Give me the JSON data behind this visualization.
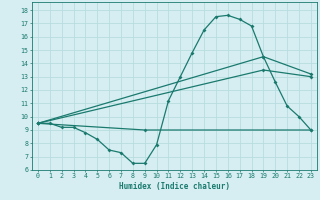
{
  "title": "",
  "xlabel": "Humidex (Indice chaleur)",
  "xlim": [
    -0.5,
    23.5
  ],
  "ylim": [
    6,
    18.6
  ],
  "yticks": [
    6,
    7,
    8,
    9,
    10,
    11,
    12,
    13,
    14,
    15,
    16,
    17,
    18
  ],
  "xticks": [
    0,
    1,
    2,
    3,
    4,
    5,
    6,
    7,
    8,
    9,
    10,
    11,
    12,
    13,
    14,
    15,
    16,
    17,
    18,
    19,
    20,
    21,
    22,
    23
  ],
  "bg_color": "#d6eef2",
  "grid_color": "#b8dde0",
  "line_color": "#1a7a6e",
  "line1_x": [
    0,
    1,
    2,
    3,
    4,
    5,
    6,
    7,
    8,
    9,
    10,
    11,
    12,
    13,
    14,
    15,
    16,
    17,
    18,
    19,
    20,
    21,
    22,
    23
  ],
  "line1_y": [
    9.5,
    9.5,
    9.2,
    9.2,
    8.8,
    8.3,
    7.5,
    7.3,
    6.5,
    6.5,
    7.9,
    11.2,
    13.0,
    14.8,
    16.5,
    17.5,
    17.6,
    17.3,
    16.8,
    14.5,
    12.6,
    10.8,
    10.0,
    9.0
  ],
  "line2_x": [
    0,
    9,
    23
  ],
  "line2_y": [
    9.5,
    9.0,
    9.0
  ],
  "line3_x": [
    0,
    19,
    23
  ],
  "line3_y": [
    9.5,
    13.5,
    13.0
  ],
  "line4_x": [
    0,
    19,
    23
  ],
  "line4_y": [
    9.5,
    14.5,
    13.2
  ]
}
